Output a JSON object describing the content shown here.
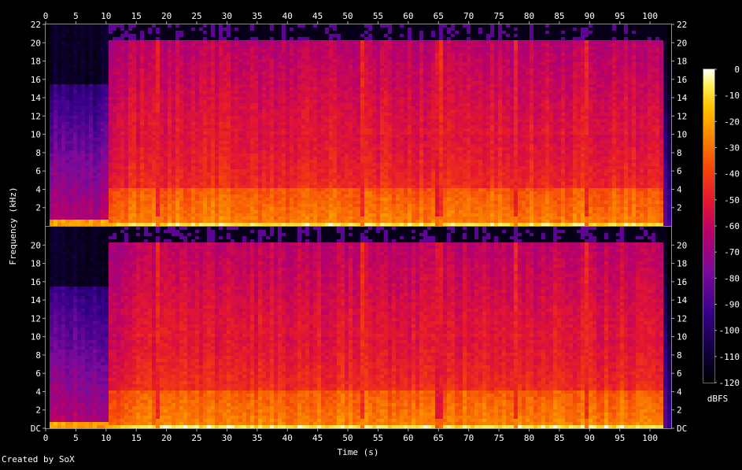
{
  "chart_data": {
    "type": "heatmap",
    "title": "",
    "xlabel": "Time (s)",
    "ylabel": "Frequency (kHz)",
    "colorbar_label": "dBFS",
    "xlim": [
      0,
      103.5
    ],
    "ylim": [
      0,
      22
    ],
    "x_ticks": [
      "0",
      "5",
      "10",
      "15",
      "20",
      "25",
      "30",
      "35",
      "40",
      "45",
      "50",
      "55",
      "60",
      "65",
      "70",
      "75",
      "80",
      "85",
      "90",
      "95",
      "100"
    ],
    "y_ticks_top": [
      "2",
      "4",
      "6",
      "8",
      "10",
      "12",
      "14",
      "16",
      "18",
      "20",
      "22"
    ],
    "y_ticks_bottom": [
      "DC",
      "2",
      "4",
      "6",
      "8",
      "10",
      "12",
      "14",
      "16",
      "18",
      "20"
    ],
    "colorbar_ticks": [
      "0",
      "-10",
      "-20",
      "-30",
      "-40",
      "-50",
      "-60",
      "-70",
      "-80",
      "-90",
      "-100",
      "-110",
      "-120"
    ],
    "colorbar_range": [
      -120,
      0
    ],
    "channels": 2,
    "grid": false,
    "colors": {
      "background": "#000000",
      "text": "#ffffff"
    },
    "time_segments": [
      {
        "from": 0,
        "to": 0.8,
        "level": "silent"
      },
      {
        "from": 0.8,
        "to": 10.3,
        "level": "quiet_intro",
        "cutoff_khz": 15.6
      },
      {
        "from": 10.3,
        "to": 11.8,
        "level": "loud",
        "cutoff_khz": 20
      },
      {
        "from": 11.8,
        "to": 102,
        "level": "loud",
        "cutoff_khz": 20
      },
      {
        "from": 102,
        "to": 103.5,
        "level": "fade_out"
      }
    ],
    "dips_s": [
      18.3,
      52.7,
      65.1,
      77.5,
      89.8
    ]
  },
  "footer": {
    "credit": "Created by SoX"
  }
}
